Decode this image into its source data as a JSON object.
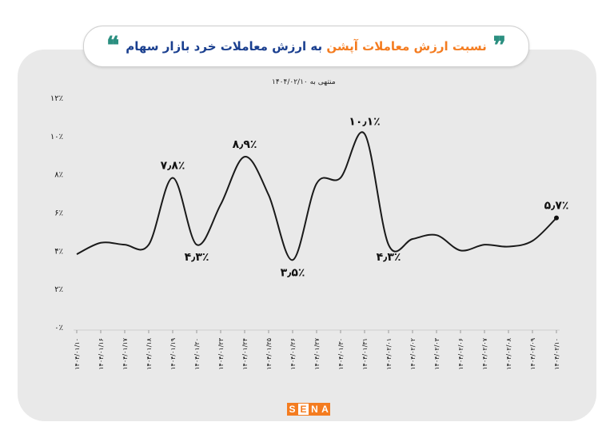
{
  "header": {
    "title_highlight": "نسبت ارزش معاملات آپشن",
    "title_rest": "به ارزش معاملات خرد بازار سهام",
    "subtitle": "منتهی به ۱۴۰۴/۰۲/۱۰"
  },
  "logo": {
    "letters": [
      "S",
      "E",
      "N",
      "A"
    ]
  },
  "colors": {
    "highlight": "#f47c20",
    "title": "#1a3f8f",
    "quote": "#2b8f80",
    "line": "#1a1a1a"
  },
  "chart_data": {
    "type": "line",
    "title": "نسبت ارزش معاملات آپشن به ارزش معاملات خرد بازار سهام",
    "subtitle": "منتهی به ۱۴۰۴/۰۲/۱۰",
    "x": [
      "۱۴۰۴/۰۱/۱۰",
      "۱۴۰۴/۰۱/۱۶",
      "۱۴۰۴/۰۱/۱۷",
      "۱۴۰۴/۰۱/۱۸",
      "۱۴۰۴/۰۱/۱۹",
      "۱۴۰۴/۰۱/۲۰",
      "۱۴۰۴/۰۱/۲۳",
      "۱۴۰۴/۰۱/۲۴",
      "۱۴۰۴/۰۱/۲۵",
      "۱۴۰۴/۰۱/۲۶",
      "۱۴۰۴/۰۱/۲۷",
      "۱۴۰۴/۰۱/۳۰",
      "۱۴۰۴/۰۱/۳۱",
      "۱۴۰۴/۰۲/۰۱",
      "۱۴۰۴/۰۲/۰۲",
      "۱۴۰۴/۰۲/۰۳",
      "۱۴۰۴/۰۲/۰۶",
      "۱۴۰۴/۰۲/۰۷",
      "۱۴۰۴/۰۲/۰۸",
      "۱۴۰۴/۰۲/۰۹",
      "۱۴۰۴/۰۲/۱۰"
    ],
    "values": [
      3.8,
      4.4,
      4.3,
      4.3,
      7.8,
      4.3,
      6.4,
      8.9,
      6.9,
      3.5,
      7.5,
      7.8,
      10.1,
      4.3,
      4.6,
      4.8,
      4.0,
      4.3,
      4.2,
      4.5,
      5.7
    ],
    "y_ticks": [
      "۰٪",
      "۲٪",
      "۴٪",
      "۶٪",
      "۸٪",
      "۱۰٪",
      "۱۲٪"
    ],
    "ylim": [
      0,
      12
    ],
    "annotations": [
      {
        "index": 4,
        "text": "۷٫۸٪",
        "pos": "above"
      },
      {
        "index": 5,
        "text": "۴٫۳٪",
        "pos": "below"
      },
      {
        "index": 7,
        "text": "۸٫۹٪",
        "pos": "above"
      },
      {
        "index": 9,
        "text": "۳٫۵٪",
        "pos": "below"
      },
      {
        "index": 12,
        "text": "۱۰٫۱٪",
        "pos": "above"
      },
      {
        "index": 13,
        "text": "۴٫۳٪",
        "pos": "below"
      },
      {
        "index": 20,
        "text": "۵٫۷٪",
        "pos": "above"
      }
    ],
    "grid": false,
    "legend": "none"
  }
}
